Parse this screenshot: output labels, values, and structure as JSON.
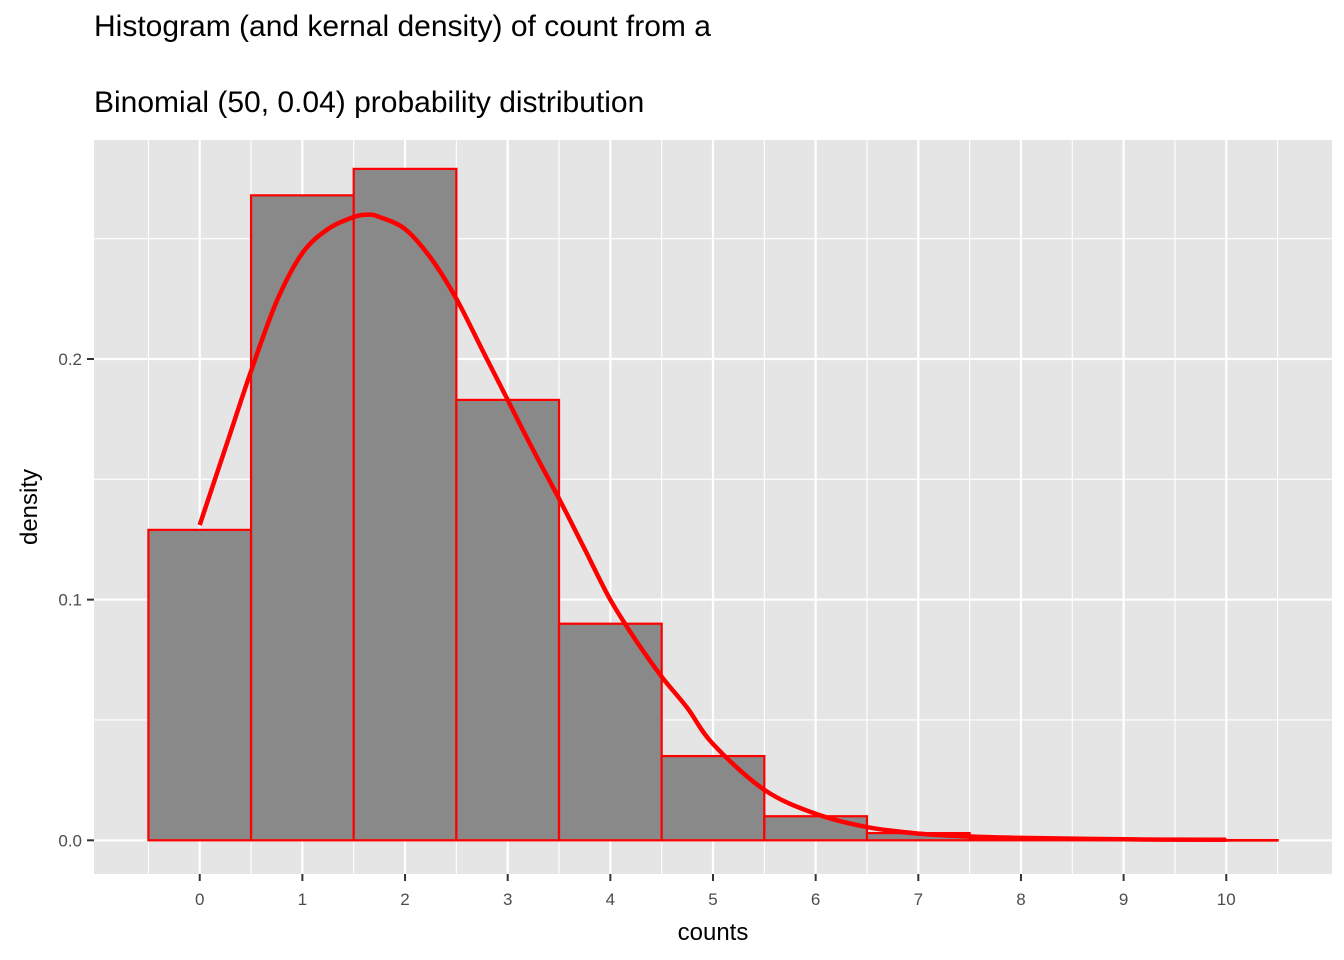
{
  "chart_data": {
    "type": "bar",
    "title_line1": "Histogram (and kernal density) of count from a",
    "title_line2": "Binomial (50, 0.04) probability distribution",
    "xlabel": "counts",
    "ylabel": "density",
    "xlim": [
      -1.03,
      11.03
    ],
    "ylim": [
      -0.014,
      0.291
    ],
    "x_ticks": [
      0,
      1,
      2,
      3,
      4,
      5,
      6,
      7,
      8,
      9,
      10
    ],
    "y_ticks": [
      0.0,
      0.1,
      0.2
    ],
    "y_tick_labels": [
      "0.0",
      "0.1",
      "0.2"
    ],
    "y_minor_grid": [
      0.05,
      0.15,
      0.25
    ],
    "x_minor_grid": [
      -0.5,
      0.5,
      1.5,
      2.5,
      3.5,
      4.5,
      5.5,
      6.5,
      7.5,
      8.5,
      9.5,
      10.5
    ],
    "grid": true,
    "histogram": {
      "bin_width": 1,
      "bin_centers": [
        0,
        1,
        2,
        3,
        4,
        5,
        6,
        7,
        8,
        9,
        10
      ],
      "values": [
        0.129,
        0.268,
        0.279,
        0.183,
        0.09,
        0.035,
        0.01,
        0.003,
        0.0005,
        0.0002,
        0.0001
      ]
    },
    "density_curve": {
      "x": [
        0,
        0.25,
        0.5,
        0.75,
        1.0,
        1.25,
        1.5,
        1.65,
        1.75,
        2.0,
        2.25,
        2.5,
        2.75,
        3.0,
        3.25,
        3.5,
        3.75,
        4.0,
        4.25,
        4.5,
        4.75,
        5.0,
        5.5,
        6.0,
        6.5,
        7.0,
        7.5,
        8.0,
        9.0,
        10.0
      ],
      "y": [
        0.131,
        0.163,
        0.195,
        0.224,
        0.244,
        0.254,
        0.259,
        0.26,
        0.259,
        0.254,
        0.242,
        0.225,
        0.204,
        0.183,
        0.162,
        0.142,
        0.121,
        0.1,
        0.083,
        0.068,
        0.055,
        0.04,
        0.021,
        0.011,
        0.0055,
        0.0028,
        0.0016,
        0.001,
        0.0004,
        0.0002
      ]
    },
    "colors": {
      "panel_background": "#e5e5e5",
      "grid": "#ffffff",
      "bar_fill": "#898989",
      "bar_outline": "#ff0000",
      "curve": "#ff0000",
      "tick_text": "#4d4d4d",
      "tick_mark": "#333333"
    }
  }
}
